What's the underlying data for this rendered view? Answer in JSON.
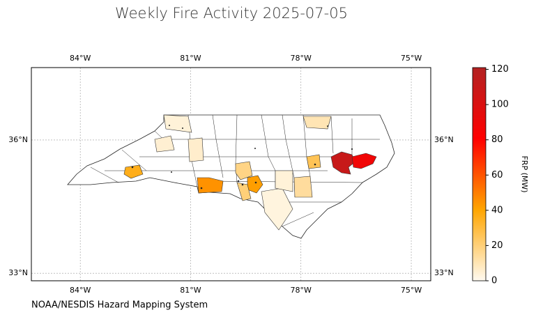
{
  "chart_data": {
    "type": "choropleth",
    "title": "Weekly Fire Activity 2025-07-05",
    "source": "NOAA/NESDIS Hazard Mapping System",
    "xlim": [
      -85.33,
      -74.47
    ],
    "ylim": [
      32.83,
      37.63
    ],
    "xticks": [
      {
        "value": -84,
        "label": "84°W"
      },
      {
        "value": -81,
        "label": "81°W"
      },
      {
        "value": -78,
        "label": "78°W"
      },
      {
        "value": -75,
        "label": "75°W"
      }
    ],
    "yticks": [
      {
        "value": 36,
        "label": "36°N"
      },
      {
        "value": 33,
        "label": "33°N"
      }
    ],
    "grid": true,
    "values": [
      110,
      88,
      45,
      42,
      36,
      18,
      20,
      26,
      14,
      10,
      4,
      5,
      6,
      3,
      4
    ],
    "colorbar": {
      "label": "FRP (MW)",
      "lim": [
        0,
        121
      ],
      "ticks": [
        0,
        20,
        40,
        60,
        80,
        100,
        120
      ],
      "colors": [
        "#fffaf0",
        "#ffa500",
        "#ff0000",
        "#b22222"
      ]
    }
  }
}
